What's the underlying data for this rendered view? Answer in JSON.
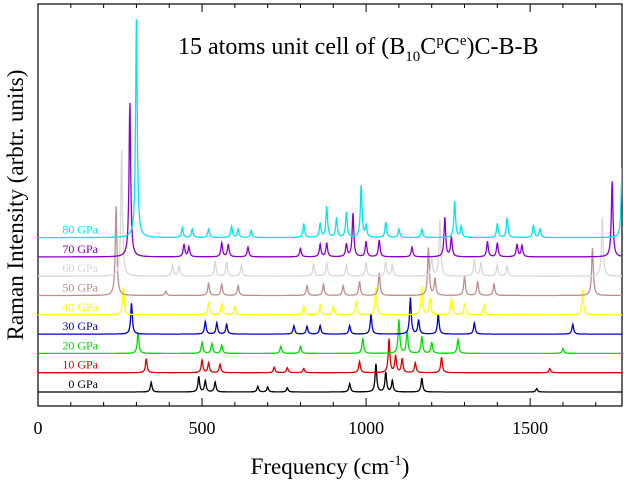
{
  "chart_data": {
    "type": "line",
    "title": {
      "prefix": "15 atoms unit cell of (B",
      "sub1": "10",
      "mid1": "C",
      "sup1": "p",
      "mid2": "C",
      "sup2": "e",
      "suffix": ")C-B-B"
    },
    "ylabel": "Raman Intensity (arbtr. units)",
    "xlabel": {
      "text": "Frequency (cm",
      "sup": "-1",
      "close": ")"
    },
    "xlim": [
      0,
      1780
    ],
    "xticks": [
      {
        "value": 0,
        "label": "0"
      },
      {
        "value": 500,
        "label": "500"
      },
      {
        "value": 1000,
        "label": "1000"
      },
      {
        "value": 1500,
        "label": "1500"
      }
    ],
    "x_minor_step": 100,
    "grid": false,
    "series": [
      {
        "name": "0 GPa",
        "color": "#000000",
        "peaks": [
          [
            345,
            0.35
          ],
          [
            490,
            0.55
          ],
          [
            510,
            0.4
          ],
          [
            540,
            0.35
          ],
          [
            670,
            0.2
          ],
          [
            700,
            0.18
          ],
          [
            760,
            0.15
          ],
          [
            950,
            0.3
          ],
          [
            1030,
            1.0
          ],
          [
            1060,
            0.7
          ],
          [
            1080,
            0.4
          ],
          [
            1170,
            0.5
          ],
          [
            1520,
            0.12
          ]
        ]
      },
      {
        "name": "10 GPa",
        "color": "#dd0000",
        "peaks": [
          [
            330,
            0.5
          ],
          [
            500,
            0.45
          ],
          [
            520,
            0.35
          ],
          [
            555,
            0.3
          ],
          [
            720,
            0.2
          ],
          [
            760,
            0.18
          ],
          [
            810,
            0.15
          ],
          [
            980,
            0.4
          ],
          [
            1070,
            1.2
          ],
          [
            1090,
            0.6
          ],
          [
            1110,
            0.5
          ],
          [
            1150,
            0.35
          ],
          [
            1230,
            0.55
          ],
          [
            1560,
            0.15
          ]
        ]
      },
      {
        "name": "20 GPa",
        "color": "#00dd00",
        "peaks": [
          [
            305,
            0.75
          ],
          [
            500,
            0.4
          ],
          [
            530,
            0.35
          ],
          [
            560,
            0.3
          ],
          [
            740,
            0.25
          ],
          [
            800,
            0.25
          ],
          [
            990,
            0.55
          ],
          [
            1100,
            1.2
          ],
          [
            1125,
            0.8
          ],
          [
            1170,
            0.6
          ],
          [
            1200,
            0.4
          ],
          [
            1280,
            0.5
          ],
          [
            1600,
            0.18
          ]
        ]
      },
      {
        "name": "30 GPa",
        "color": "#0000cc",
        "peaks": [
          [
            285,
            1.1
          ],
          [
            510,
            0.45
          ],
          [
            545,
            0.4
          ],
          [
            575,
            0.35
          ],
          [
            780,
            0.3
          ],
          [
            820,
            0.28
          ],
          [
            860,
            0.3
          ],
          [
            950,
            0.3
          ],
          [
            1015,
            0.7
          ],
          [
            1135,
            1.3
          ],
          [
            1160,
            0.5
          ],
          [
            1220,
            0.7
          ],
          [
            1330,
            0.4
          ],
          [
            1630,
            0.35
          ]
        ]
      },
      {
        "name": "40 GPa",
        "color": "#ffff00",
        "peaks": [
          [
            260,
            1.0
          ],
          [
            520,
            0.45
          ],
          [
            560,
            0.4
          ],
          [
            600,
            0.3
          ],
          [
            810,
            0.3
          ],
          [
            860,
            0.35
          ],
          [
            900,
            0.3
          ],
          [
            970,
            0.5
          ],
          [
            1030,
            1.0
          ],
          [
            1170,
            1.0
          ],
          [
            1195,
            0.6
          ],
          [
            1260,
            0.6
          ],
          [
            1300,
            0.4
          ],
          [
            1360,
            0.35
          ],
          [
            1660,
            0.9
          ]
        ]
      },
      {
        "name": "50 GPa",
        "color": "#bc8f8f",
        "peaks": [
          [
            238,
            3.2
          ],
          [
            390,
            0.15
          ],
          [
            520,
            0.45
          ],
          [
            560,
            0.4
          ],
          [
            610,
            0.35
          ],
          [
            820,
            0.35
          ],
          [
            870,
            0.4
          ],
          [
            930,
            0.35
          ],
          [
            980,
            0.5
          ],
          [
            1040,
            0.8
          ],
          [
            1190,
            1.7
          ],
          [
            1210,
            0.6
          ],
          [
            1300,
            0.7
          ],
          [
            1340,
            0.5
          ],
          [
            1390,
            0.4
          ],
          [
            1690,
            1.7
          ]
        ]
      },
      {
        "name": "60 GPa",
        "color": "#d8d8d8",
        "peaks": [
          [
            255,
            4.5
          ],
          [
            410,
            0.4
          ],
          [
            430,
            0.35
          ],
          [
            540,
            0.55
          ],
          [
            575,
            0.5
          ],
          [
            620,
            0.4
          ],
          [
            840,
            0.45
          ],
          [
            880,
            0.5
          ],
          [
            940,
            0.4
          ],
          [
            1000,
            0.5
          ],
          [
            1060,
            0.5
          ],
          [
            1080,
            0.4
          ],
          [
            1200,
            0.7
          ],
          [
            1225,
            2.0
          ],
          [
            1330,
            0.6
          ],
          [
            1350,
            0.5
          ],
          [
            1400,
            0.4
          ],
          [
            1430,
            0.35
          ],
          [
            1720,
            2.1
          ]
        ]
      },
      {
        "name": "70 GPa",
        "color": "#8b00c8",
        "peaks": [
          [
            280,
            5.5
          ],
          [
            445,
            0.45
          ],
          [
            460,
            0.35
          ],
          [
            560,
            0.5
          ],
          [
            580,
            0.45
          ],
          [
            640,
            0.35
          ],
          [
            800,
            0.3
          ],
          [
            860,
            0.45
          ],
          [
            880,
            0.5
          ],
          [
            940,
            0.45
          ],
          [
            960,
            1.55
          ],
          [
            1000,
            0.55
          ],
          [
            1040,
            0.6
          ],
          [
            1140,
            0.35
          ],
          [
            1240,
            1.4
          ],
          [
            1260,
            0.7
          ],
          [
            1370,
            0.55
          ],
          [
            1400,
            0.5
          ],
          [
            1460,
            0.45
          ],
          [
            1475,
            0.4
          ],
          [
            1750,
            2.7
          ]
        ]
      },
      {
        "name": "80 GPa",
        "color": "#00e5ee",
        "peaks": [
          [
            300,
            7.8
          ],
          [
            440,
            0.35
          ],
          [
            470,
            0.3
          ],
          [
            520,
            0.3
          ],
          [
            590,
            0.4
          ],
          [
            610,
            0.3
          ],
          [
            650,
            0.25
          ],
          [
            810,
            0.5
          ],
          [
            860,
            0.5
          ],
          [
            880,
            1.1
          ],
          [
            910,
            0.7
          ],
          [
            940,
            0.9
          ],
          [
            985,
            1.85
          ],
          [
            1000,
            0.4
          ],
          [
            1060,
            0.55
          ],
          [
            1100,
            0.3
          ],
          [
            1170,
            0.3
          ],
          [
            1270,
            1.3
          ],
          [
            1290,
            0.4
          ],
          [
            1400,
            0.5
          ],
          [
            1430,
            0.7
          ],
          [
            1510,
            0.45
          ],
          [
            1530,
            0.3
          ],
          [
            1780,
            2.5
          ]
        ]
      }
    ]
  }
}
